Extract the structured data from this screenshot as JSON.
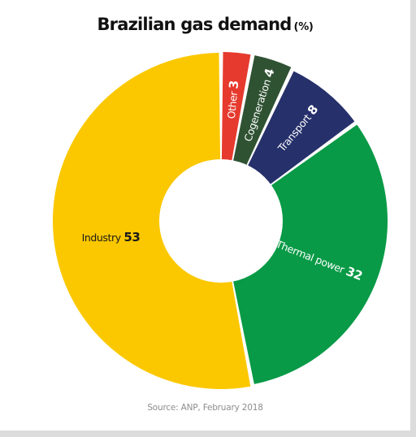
{
  "title": "Brazilian gas demand",
  "title_unit": "(%)",
  "source": "Source: ANP, February 2018",
  "chart_data": {
    "type": "pie",
    "variant": "donut",
    "title": "Brazilian gas demand",
    "unit": "%",
    "slices": [
      {
        "label": "Other",
        "value": 3,
        "color": "#e63a2e",
        "text_color": "#ffffff"
      },
      {
        "label": "Cogeneration",
        "value": 4,
        "color": "#2f5233",
        "text_color": "#ffffff"
      },
      {
        "label": "Transport",
        "value": 8,
        "color": "#26306b",
        "text_color": "#ffffff"
      },
      {
        "label": "Thermal power",
        "value": 32,
        "color": "#089a46",
        "text_color": "#ffffff"
      },
      {
        "label": "Industry",
        "value": 53,
        "color": "#fbc800",
        "text_color": "#1a1a1a"
      }
    ],
    "start": "12 o'clock",
    "direction": "clockwise"
  }
}
